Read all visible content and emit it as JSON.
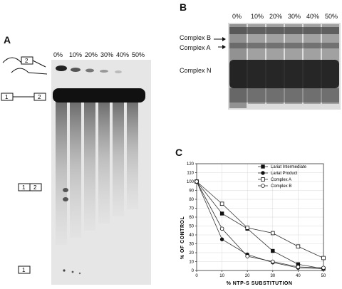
{
  "panels": {
    "a": {
      "letter": "A",
      "lanes": [
        "0%",
        "10%",
        "20%",
        "30%",
        "40%",
        "50%"
      ],
      "diagrams": [
        {
          "exon_labels": [
            "",
            "2"
          ]
        },
        {
          "exon_labels": [
            "1",
            "2"
          ]
        },
        {
          "exon_labels": [
            "1",
            "2"
          ]
        },
        {
          "exon_labels": [
            "1"
          ]
        }
      ]
    },
    "b": {
      "letter": "B",
      "lanes": [
        "0%",
        "10%",
        "20%",
        "30%",
        "40%",
        "50%"
      ],
      "labels": [
        "Complex B",
        "Complex A",
        "Complex N"
      ]
    },
    "c": {
      "letter": "C"
    }
  },
  "chart_data": {
    "type": "line",
    "x": [
      0,
      10,
      20,
      30,
      40,
      50
    ],
    "xlabel": "% NTP-S SUBSTITUTION",
    "ylabel": "% OF CONTROL",
    "xlim": [
      0,
      50
    ],
    "ylim": [
      0,
      120
    ],
    "xticks": [
      0,
      10,
      20,
      30,
      40,
      50
    ],
    "yticks": [
      0,
      10,
      20,
      30,
      40,
      50,
      60,
      70,
      80,
      90,
      100,
      110,
      120
    ],
    "legend_position": "top-right",
    "series": [
      {
        "name": "Lariat Intermediate",
        "marker": "filled-square",
        "values": [
          100,
          64,
          47,
          22,
          7,
          2
        ]
      },
      {
        "name": "Lariat Product",
        "marker": "filled-circle",
        "values": [
          100,
          35,
          18,
          9,
          3,
          2
        ]
      },
      {
        "name": "Complex A",
        "marker": "open-square",
        "values": [
          100,
          75,
          48,
          42,
          27,
          14
        ]
      },
      {
        "name": "Complex B",
        "marker": "open-circle",
        "values": [
          100,
          47,
          16,
          10,
          4,
          3
        ]
      }
    ]
  }
}
